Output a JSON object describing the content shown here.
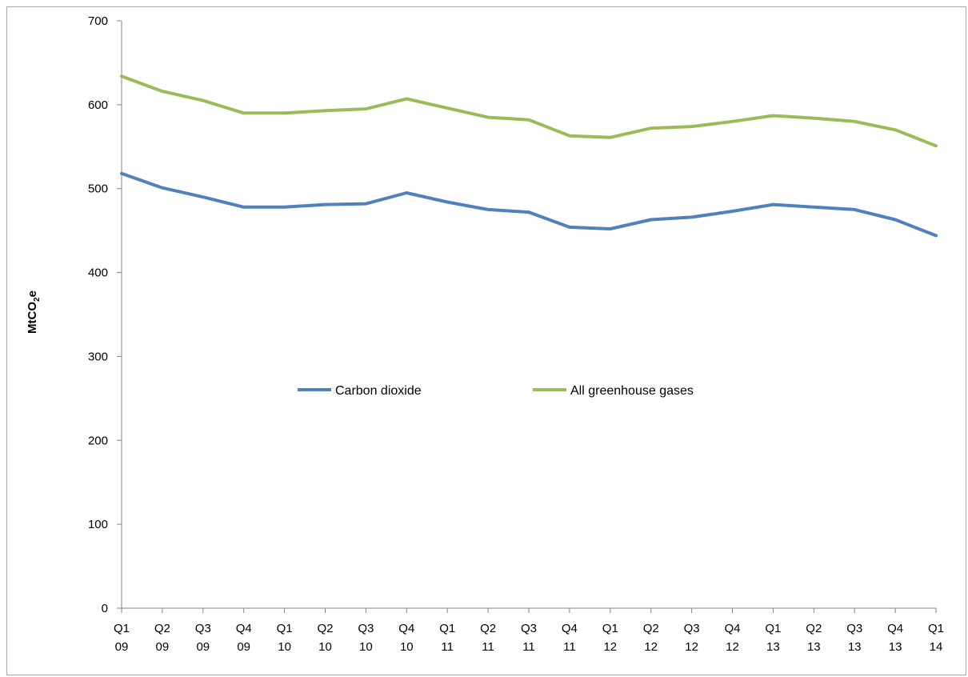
{
  "chart_data": {
    "type": "line",
    "title": "",
    "xlabel": "",
    "ylabel": "MtCO2e",
    "ylabel_main": "MtCO",
    "ylabel_sub": "2",
    "ylabel_tail": "e",
    "ylim": [
      0,
      700
    ],
    "yticks": [
      0,
      100,
      200,
      300,
      400,
      500,
      600,
      700
    ],
    "categories": [
      [
        "Q1",
        "09"
      ],
      [
        "Q2",
        "09"
      ],
      [
        "Q3",
        "09"
      ],
      [
        "Q4",
        "09"
      ],
      [
        "Q1",
        "10"
      ],
      [
        "Q2",
        "10"
      ],
      [
        "Q3",
        "10"
      ],
      [
        "Q4",
        "10"
      ],
      [
        "Q1",
        "11"
      ],
      [
        "Q2",
        "11"
      ],
      [
        "Q3",
        "11"
      ],
      [
        "Q4",
        "11"
      ],
      [
        "Q1",
        "12"
      ],
      [
        "Q2",
        "12"
      ],
      [
        "Q3",
        "12"
      ],
      [
        "Q4",
        "12"
      ],
      [
        "Q1",
        "13"
      ],
      [
        "Q2",
        "13"
      ],
      [
        "Q3",
        "13"
      ],
      [
        "Q4",
        "13"
      ],
      [
        "Q1",
        "14"
      ]
    ],
    "grid": false,
    "legend_position": "center",
    "series": [
      {
        "name": "Carbon dioxide",
        "color": "#4f81bd",
        "values": [
          518,
          501,
          490,
          478,
          478,
          481,
          482,
          495,
          484,
          475,
          472,
          454,
          452,
          463,
          466,
          473,
          481,
          478,
          475,
          463,
          444
        ]
      },
      {
        "name": "All greenhouse gases",
        "color": "#9bbb59",
        "values": [
          634,
          616,
          605,
          590,
          590,
          593,
          595,
          607,
          596,
          585,
          582,
          563,
          561,
          572,
          574,
          580,
          587,
          584,
          580,
          570,
          551
        ]
      }
    ]
  }
}
